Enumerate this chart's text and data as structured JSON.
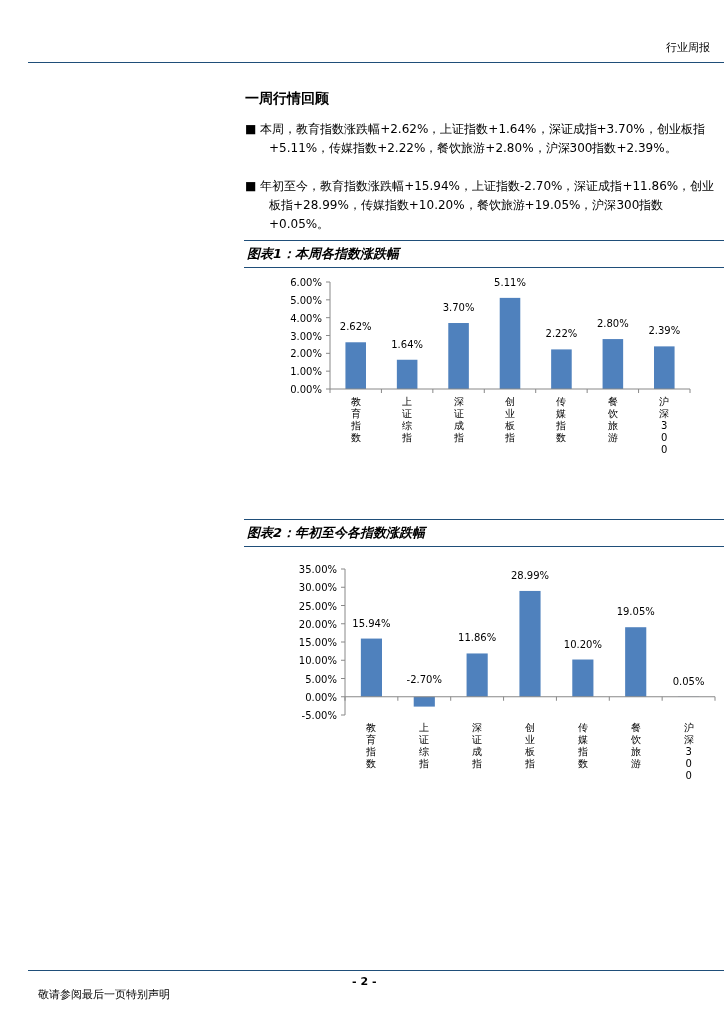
{
  "chart_data": [
    {
      "type": "bar",
      "title": "图表1：本周各指数涨跌幅",
      "categories": [
        "教育指数",
        "上证综指",
        "深证成指",
        "创业板指",
        "传媒指数",
        "餐饮旅游",
        "沪深300"
      ],
      "values": [
        2.62,
        1.64,
        3.7,
        5.11,
        2.22,
        2.8,
        2.39
      ],
      "value_labels": [
        "2.62%",
        "1.64%",
        "3.70%",
        "5.11%",
        "2.22%",
        "2.80%",
        "2.39%"
      ],
      "color": "#4f81bd",
      "ylim": [
        0,
        6
      ],
      "yticks": [
        {
          "value": 0,
          "label": "0.00%"
        },
        {
          "value": 1,
          "label": "1.00%"
        },
        {
          "value": 2,
          "label": "2.00%"
        },
        {
          "value": 3,
          "label": "3.00%"
        },
        {
          "value": 4,
          "label": "4.00%"
        },
        {
          "value": 5,
          "label": "5.00%"
        },
        {
          "value": 6,
          "label": "6.00%"
        }
      ],
      "annotations": [
        "行业周报",
        "一周行情回顾",
        "■  本周，教育指数涨跌幅+2.62%，上证指数+1.64%，深证成指+3.70%，创业板指+5.11%，传媒指数+2.22%，餐饮旅游+2.80%，沪深300指数+2.39%。",
        "■  年初至今，教育指数涨跌幅+15.94%，上证指数-2.70%，深证成指+11.86%，创业板指+28.99%，传媒指数+10.20%，餐饮旅游+19.05%，沪深300指数+0.05%。"
      ]
    },
    {
      "type": "bar",
      "title": "图表2：年初至今各指数涨跌幅",
      "categories": [
        "教育指数",
        "上证综指",
        "深证成指",
        "创业板指",
        "传媒指数",
        "餐饮旅游",
        "沪深300"
      ],
      "values": [
        15.94,
        -2.7,
        11.86,
        28.99,
        10.2,
        19.05,
        0.05
      ],
      "value_labels": [
        "15.94%",
        "-2.70%",
        "11.86%",
        "28.99%",
        "10.20%",
        "19.05%",
        "0.05%"
      ],
      "color": "#4f81bd",
      "ylim": [
        -5,
        35
      ],
      "yticks": [
        {
          "value": -5,
          "label": "-5.00%"
        },
        {
          "value": 0,
          "label": "0.00%"
        },
        {
          "value": 5,
          "label": "5.00%"
        },
        {
          "value": 10,
          "label": "10.00%"
        },
        {
          "value": 15,
          "label": "15.00%"
        },
        {
          "value": 20,
          "label": "20.00%"
        },
        {
          "value": 25,
          "label": "25.00%"
        },
        {
          "value": 30,
          "label": "30.00%"
        },
        {
          "value": 35,
          "label": "35.00%"
        }
      ],
      "annotations": [
        "- 2 -",
        "敬请参阅最后一页特别声明"
      ]
    }
  ]
}
